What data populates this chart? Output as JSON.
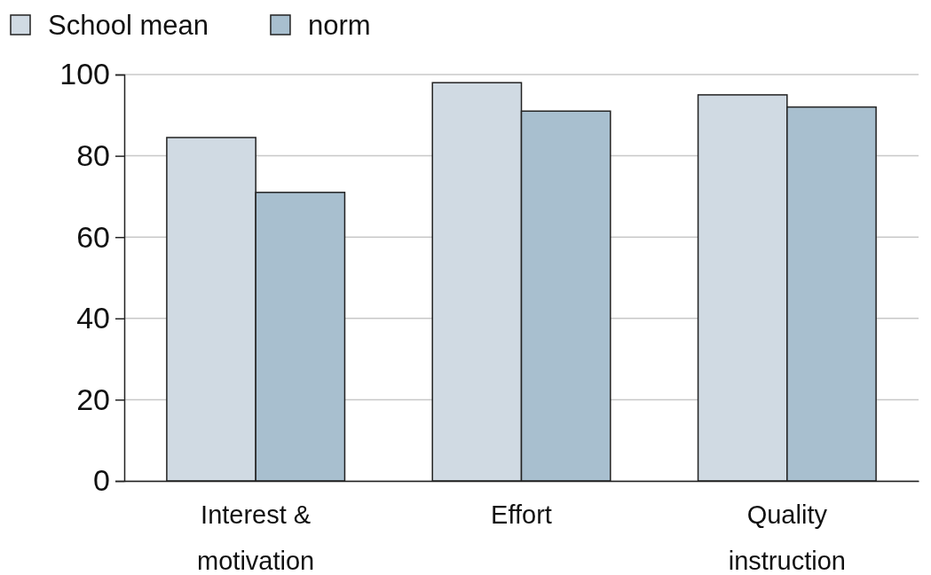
{
  "chart_data": {
    "type": "bar",
    "categories": [
      "Interest & motivation",
      "Effort",
      "Quality instruction"
    ],
    "series": [
      {
        "name": "School mean",
        "color": "#d0dae3",
        "values": [
          84.5,
          98,
          95
        ]
      },
      {
        "name": "norm",
        "color": "#a8bfcf",
        "values": [
          71,
          91,
          92
        ]
      }
    ],
    "ylim": [
      0,
      100
    ],
    "yticks": [
      0,
      20,
      40,
      60,
      80,
      100
    ],
    "grid": "y",
    "legend": "top left"
  }
}
